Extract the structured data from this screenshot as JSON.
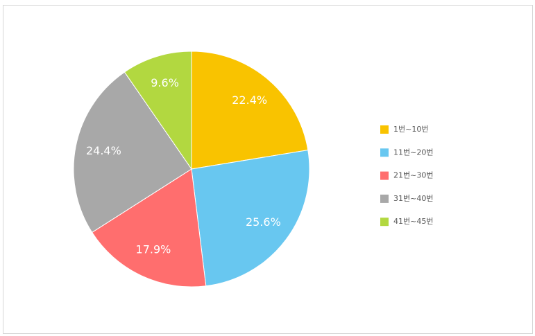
{
  "chart_data": {
    "type": "pie",
    "categories": [
      "1번~10번",
      "11번~20번",
      "21번~30번",
      "31번~40번",
      "41번~45번"
    ],
    "values": [
      22.4,
      25.6,
      17.9,
      24.4,
      9.6
    ],
    "value_labels": [
      "22.4%",
      "25.6%",
      "17.9%",
      "24.4%",
      "9.6%"
    ],
    "colors": [
      "#f9c300",
      "#68c7f0",
      "#ff6e6e",
      "#a8a8a8",
      "#b2d840"
    ]
  }
}
